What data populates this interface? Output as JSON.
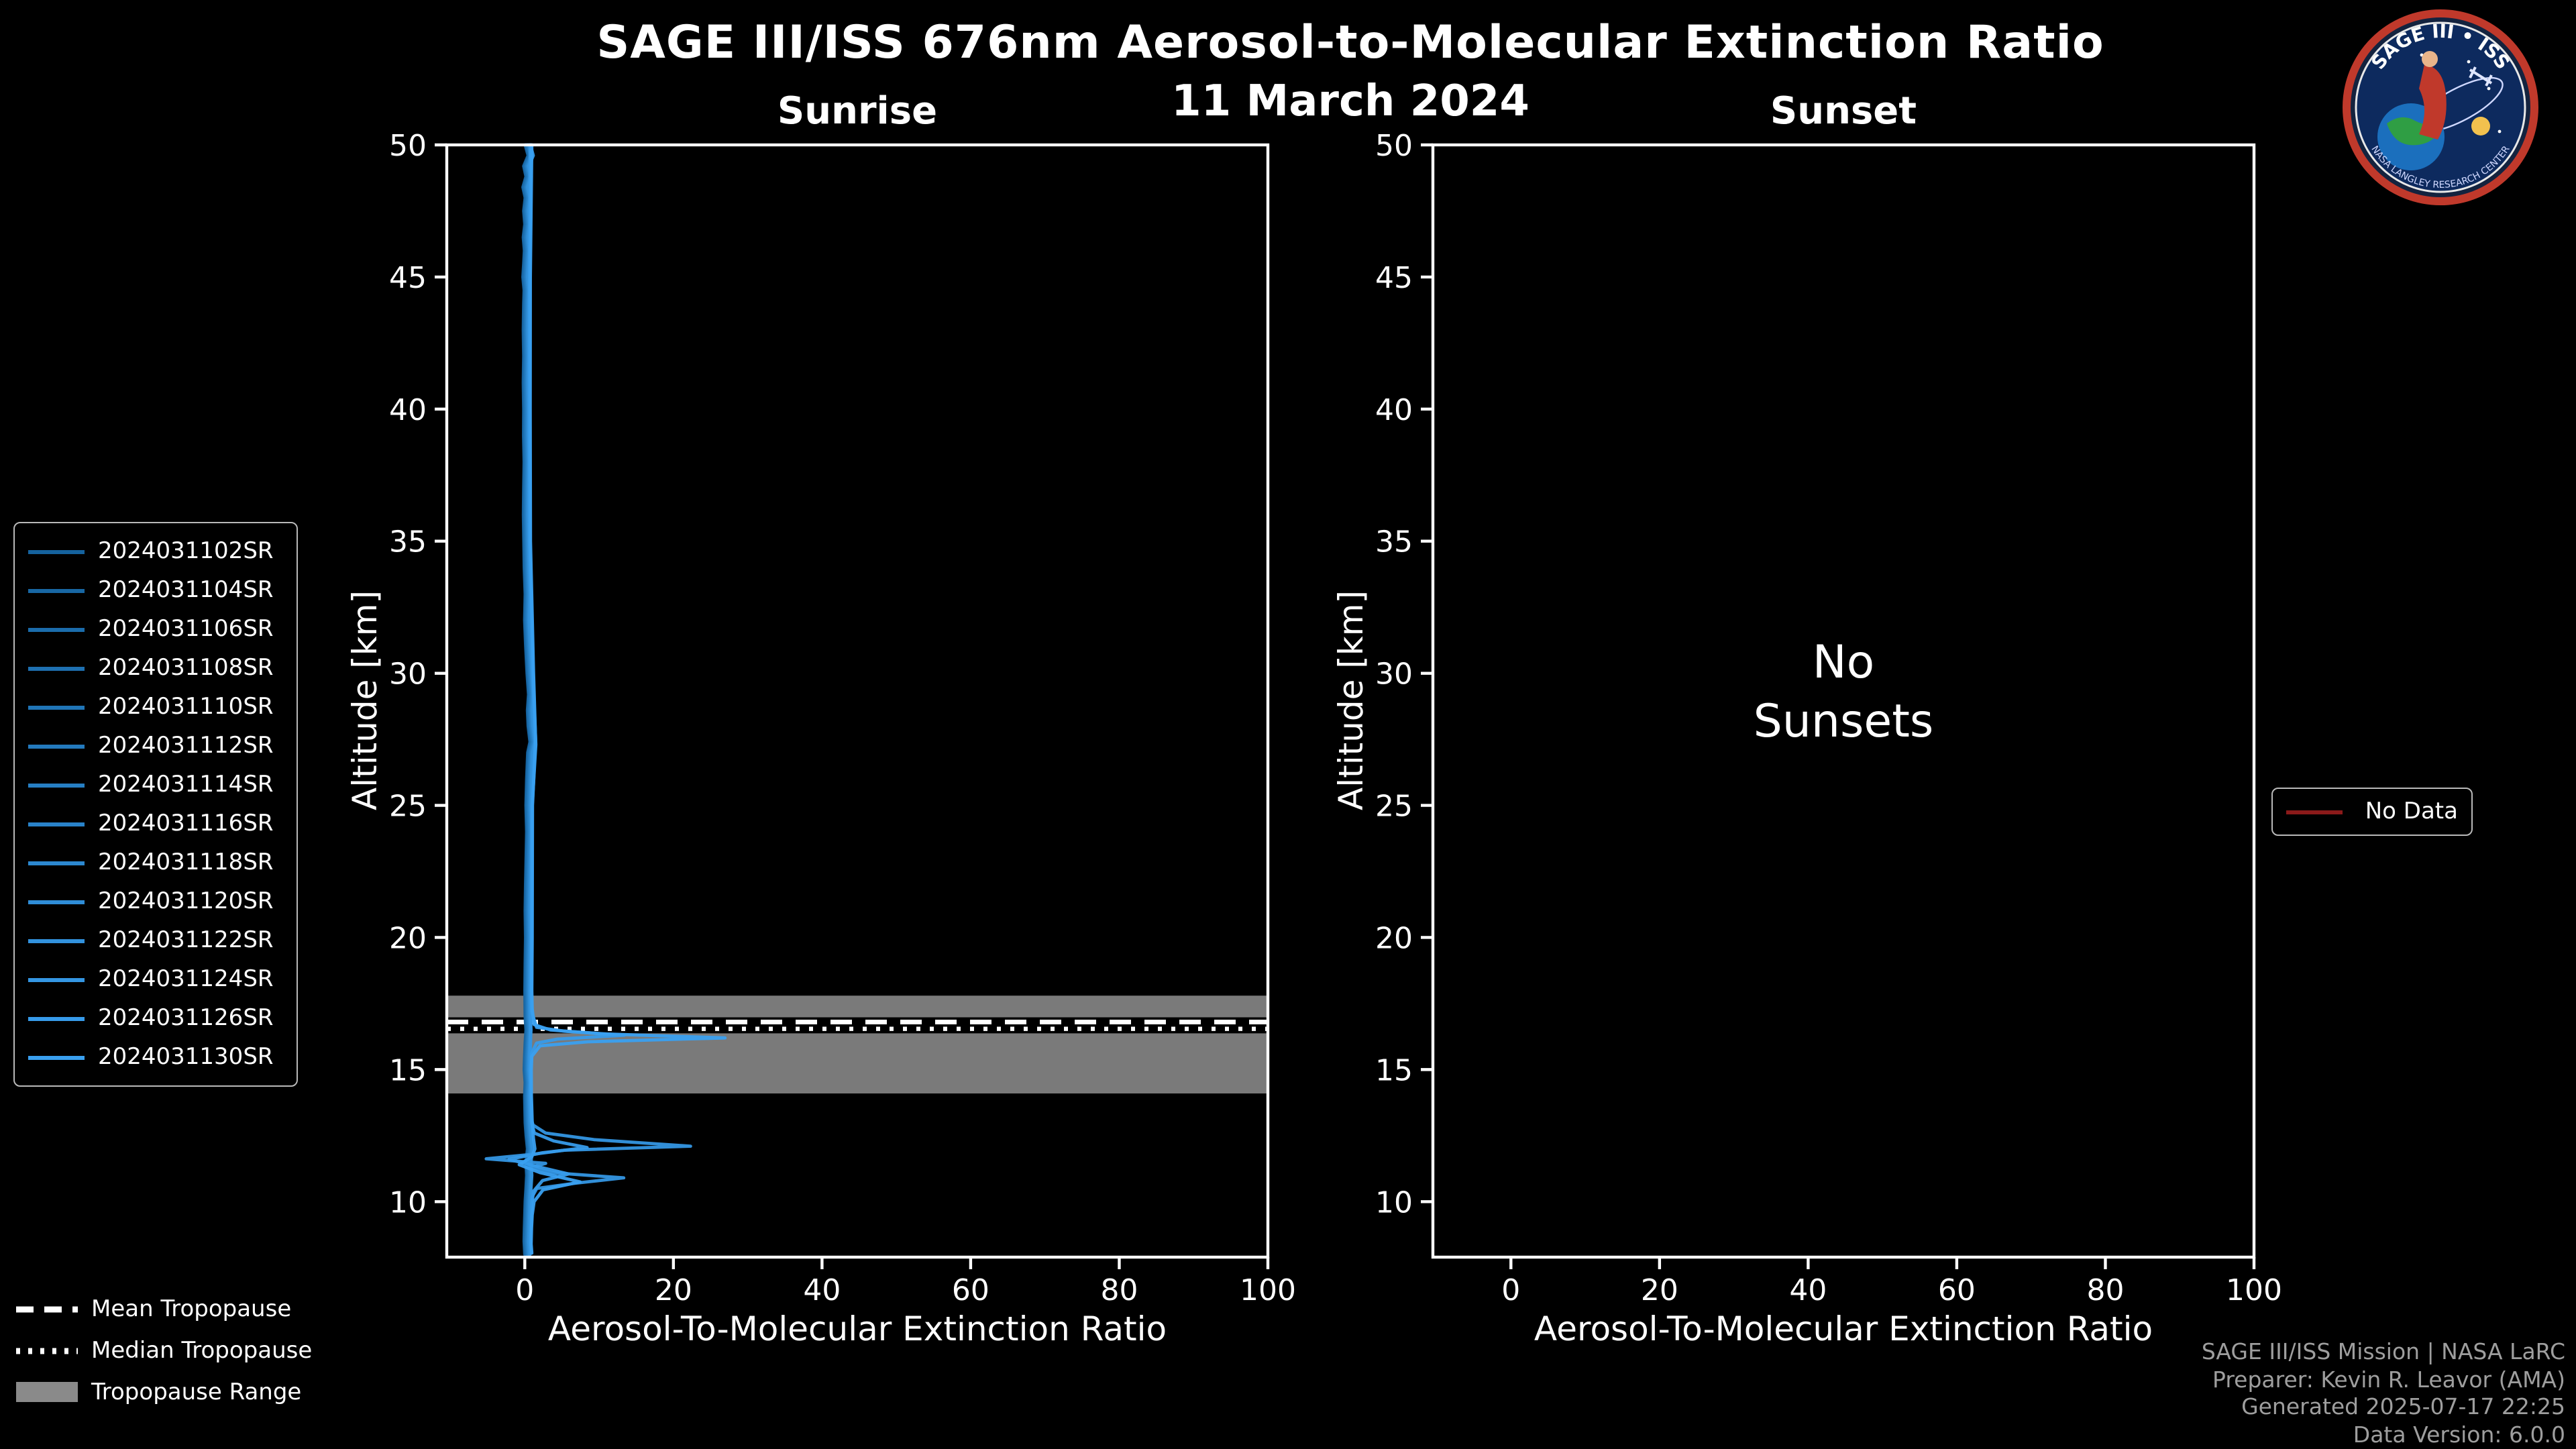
{
  "header": {
    "title": "SAGE III/ISS 676nm Aerosol-to-Molecular Extinction Ratio",
    "date": "11 March 2024"
  },
  "logo": {
    "title": "SAGE III • ISS",
    "subtitle": "NASA LANGLEY RESEARCH CENTER"
  },
  "event_legend": {
    "items": [
      {
        "label": "2024031102SR",
        "color": "#15629e"
      },
      {
        "label": "2024031104SR",
        "color": "#1867a4"
      },
      {
        "label": "2024031106SR",
        "color": "#1b6cab"
      },
      {
        "label": "2024031108SR",
        "color": "#1e70b1"
      },
      {
        "label": "2024031110SR",
        "color": "#2075b7"
      },
      {
        "label": "2024031112SR",
        "color": "#237abe"
      },
      {
        "label": "2024031114SR",
        "color": "#267fc4"
      },
      {
        "label": "2024031116SR",
        "color": "#2983ca"
      },
      {
        "label": "2024031118SR",
        "color": "#2c88d0"
      },
      {
        "label": "2024031120SR",
        "color": "#2f8dd7"
      },
      {
        "label": "2024031122SR",
        "color": "#3292dd"
      },
      {
        "label": "2024031124SR",
        "color": "#3496e3"
      },
      {
        "label": "2024031126SR",
        "color": "#379bea"
      },
      {
        "label": "2024031130SR",
        "color": "#3aa0f0"
      }
    ]
  },
  "tropopause_legend": {
    "mean": "Mean Tropopause",
    "median": "Median Tropopause",
    "range": "Tropopause Range"
  },
  "no_data_legend": {
    "label": "No Data",
    "color": "#8b1a1a"
  },
  "footer": {
    "lines": [
      "SAGE III/ISS Mission | NASA LaRC",
      "Preparer: Kevin R. Leavor (AMA)",
      "Generated 2025-07-17 22:25",
      "Data Version: 6.0.0"
    ]
  },
  "chart_data": {
    "type": "line",
    "title": "SAGE III/ISS 676nm Aerosol-to-Molecular Extinction Ratio",
    "subtitle": "11 March 2024",
    "grid": false,
    "panels": [
      {
        "title": "Sunrise",
        "xlabel": "Aerosol-To-Molecular Extinction Ratio",
        "ylabel": "Altitude [km]",
        "xlim": [
          -10.5,
          100
        ],
        "ylim": [
          7.9,
          50
        ],
        "xticks": [
          0,
          20,
          40,
          60,
          80,
          100
        ],
        "yticks": [
          10,
          15,
          20,
          25,
          30,
          35,
          40,
          45,
          50
        ],
        "legend_position": "left",
        "tropopause": {
          "mean": 16.8,
          "median": 16.55,
          "range": [
            14.1,
            17.8
          ]
        },
        "series": [
          {
            "name": "2024031102SR",
            "color": "#15629e",
            "profile": "base"
          },
          {
            "name": "2024031104SR",
            "color": "#1867a4",
            "profile": "base"
          },
          {
            "name": "2024031106SR",
            "color": "#1b6cab",
            "profile": "base"
          },
          {
            "name": "2024031108SR",
            "color": "#1e70b1",
            "profile": "base"
          },
          {
            "name": "2024031110SR",
            "color": "#2075b7",
            "profile": "base"
          },
          {
            "name": "2024031112SR",
            "color": "#237abe",
            "profile": "base"
          },
          {
            "name": "2024031114SR",
            "color": "#267fc4",
            "profile": "base"
          },
          {
            "name": "2024031116SR",
            "color": "#2983ca",
            "profile": "base"
          },
          {
            "name": "2024031118SR",
            "color": "#2c88d0",
            "profile": "base"
          },
          {
            "name": "2024031120SR",
            "color": "#2f8dd7",
            "profile": "base"
          },
          {
            "name": "2024031122SR",
            "color": "#3292dd",
            "profile": "base"
          },
          {
            "name": "2024031124SR",
            "color": "#3496e3",
            "profile": "p1124"
          },
          {
            "name": "2024031126SR",
            "color": "#379bea",
            "profile": "p1126"
          },
          {
            "name": "2024031130SR",
            "color": "#3aa0f0",
            "profile": "p1130"
          }
        ],
        "profiles": {
          "base": [
            [
              50,
              0.5
            ],
            [
              49.6,
              0.9
            ],
            [
              49.2,
              0.3
            ],
            [
              48.8,
              0.6
            ],
            [
              48.4,
              0.2
            ],
            [
              48,
              0.5
            ],
            [
              47.5,
              0.3
            ],
            [
              47,
              0.45
            ],
            [
              46.5,
              0.25
            ],
            [
              46,
              0.4
            ],
            [
              45.5,
              0.3
            ],
            [
              45,
              0.2
            ],
            [
              44.5,
              0.35
            ],
            [
              44,
              0.3
            ],
            [
              43,
              0.25
            ],
            [
              42,
              0.3
            ],
            [
              41,
              0.25
            ],
            [
              40,
              0.3
            ],
            [
              39,
              0.28
            ],
            [
              38,
              0.35
            ],
            [
              37,
              0.3
            ],
            [
              36,
              0.27
            ],
            [
              35,
              0.32
            ],
            [
              34,
              0.38
            ],
            [
              33,
              0.5
            ],
            [
              32,
              0.42
            ],
            [
              31,
              0.58
            ],
            [
              30,
              0.75
            ],
            [
              29.2,
              0.95
            ],
            [
              28.6,
              0.8
            ],
            [
              28,
              0.9
            ],
            [
              27.4,
              1.15
            ],
            [
              27,
              0.85
            ],
            [
              26,
              0.7
            ],
            [
              25,
              0.6
            ],
            [
              24,
              0.7
            ],
            [
              23,
              0.62
            ],
            [
              22,
              0.55
            ],
            [
              21,
              0.5
            ],
            [
              20,
              0.56
            ],
            [
              19,
              0.5
            ],
            [
              18,
              0.47
            ],
            [
              17,
              0.5
            ],
            [
              16.5,
              0.6
            ],
            [
              16,
              0.5
            ],
            [
              15.5,
              0.42
            ],
            [
              15,
              0.38
            ],
            [
              14.5,
              0.5
            ],
            [
              14,
              0.42
            ],
            [
              13.5,
              0.46
            ],
            [
              13,
              0.5
            ],
            [
              12.5,
              0.62
            ],
            [
              12,
              0.8
            ],
            [
              11.5,
              0.6
            ],
            [
              11,
              0.7
            ],
            [
              10.5,
              0.6
            ],
            [
              10,
              0.5
            ],
            [
              9.5,
              0.45
            ],
            [
              9,
              0.4
            ],
            [
              8.5,
              0.35
            ],
            [
              8,
              0.45
            ]
          ],
          "p1124": [
            [
              50,
              0.4
            ],
            [
              45,
              0.3
            ],
            [
              40,
              0.28
            ],
            [
              35,
              0.33
            ],
            [
              30,
              0.7
            ],
            [
              27.4,
              1.05
            ],
            [
              25,
              0.6
            ],
            [
              20,
              0.55
            ],
            [
              18,
              0.45
            ],
            [
              17,
              0.5
            ],
            [
              16,
              0.45
            ],
            [
              15,
              0.4
            ],
            [
              14,
              0.45
            ],
            [
              13.2,
              0.5
            ],
            [
              12.9,
              0.8
            ],
            [
              12.6,
              2.5
            ],
            [
              12.35,
              9
            ],
            [
              12.1,
              22
            ],
            [
              11.95,
              5
            ],
            [
              11.8,
              1
            ],
            [
              11.62,
              -5.5
            ],
            [
              11.45,
              2.5
            ],
            [
              11.3,
              0.6
            ],
            [
              11.1,
              3.2
            ],
            [
              10.9,
              13
            ],
            [
              10.7,
              6.5
            ],
            [
              10.5,
              1.3
            ],
            [
              10.2,
              0.7
            ],
            [
              9.8,
              0.55
            ],
            [
              9.4,
              0.45
            ],
            [
              9,
              0.5
            ],
            [
              8.5,
              0.4
            ],
            [
              8.05,
              0.55
            ]
          ],
          "p1126": [
            [
              50,
              0.45
            ],
            [
              45,
              0.28
            ],
            [
              40,
              0.3
            ],
            [
              35,
              0.3
            ],
            [
              30,
              0.72
            ],
            [
              27.3,
              1.1
            ],
            [
              25,
              0.62
            ],
            [
              20,
              0.52
            ],
            [
              18,
              0.48
            ],
            [
              17.2,
              0.55
            ],
            [
              16.6,
              1.2
            ],
            [
              16.45,
              5
            ],
            [
              16.3,
              13
            ],
            [
              16.15,
              4
            ],
            [
              16,
              1.2
            ],
            [
              15.6,
              0.5
            ],
            [
              15,
              0.4
            ],
            [
              14,
              0.45
            ],
            [
              13,
              0.5
            ],
            [
              12.6,
              0.9
            ],
            [
              12.3,
              3.5
            ],
            [
              12.05,
              8
            ],
            [
              11.85,
              2
            ],
            [
              11.6,
              -2.5
            ],
            [
              11.35,
              1
            ],
            [
              11.05,
              5.5
            ],
            [
              10.8,
              2
            ],
            [
              10.4,
              0.8
            ],
            [
              10,
              0.6
            ],
            [
              9.4,
              0.5
            ],
            [
              8.8,
              0.4
            ],
            [
              8.05,
              0.45
            ]
          ],
          "p1130": [
            [
              50,
              0.5
            ],
            [
              45,
              0.3
            ],
            [
              40,
              0.27
            ],
            [
              35,
              0.31
            ],
            [
              30,
              0.73
            ],
            [
              27.5,
              1
            ],
            [
              25,
              0.58
            ],
            [
              20,
              0.54
            ],
            [
              18,
              0.5
            ],
            [
              17.3,
              0.55
            ],
            [
              16.7,
              0.8
            ],
            [
              16.5,
              3
            ],
            [
              16.35,
              10
            ],
            [
              16.2,
              26.5
            ],
            [
              16.05,
              8
            ],
            [
              15.9,
              1.6
            ],
            [
              15.5,
              0.5
            ],
            [
              15,
              0.42
            ],
            [
              14,
              0.44
            ],
            [
              13,
              0.55
            ],
            [
              12.4,
              0.7
            ],
            [
              12,
              0.9
            ],
            [
              11.7,
              0.5
            ],
            [
              11.4,
              -1.2
            ],
            [
              11.1,
              1.6
            ],
            [
              10.75,
              7
            ],
            [
              10.45,
              2
            ],
            [
              10,
              0.8
            ],
            [
              9.5,
              0.55
            ],
            [
              9,
              0.45
            ],
            [
              8.4,
              0.4
            ],
            [
              8.05,
              0.5
            ]
          ]
        }
      },
      {
        "title": "Sunset",
        "xlabel": "Aerosol-To-Molecular Extinction Ratio",
        "ylabel": "Altitude [km]",
        "xlim": [
          -10.5,
          100
        ],
        "ylim": [
          7.9,
          50
        ],
        "xticks": [
          0,
          20,
          40,
          60,
          80,
          100
        ],
        "yticks": [
          10,
          15,
          20,
          25,
          30,
          35,
          40,
          45,
          50
        ],
        "annotation": {
          "line1": "No",
          "line2": "Sunsets"
        },
        "series": []
      }
    ]
  }
}
